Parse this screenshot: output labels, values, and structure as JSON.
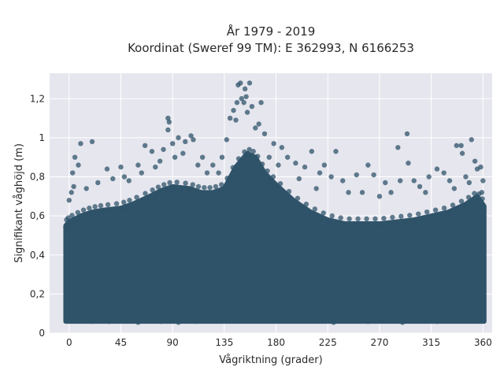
{
  "chart_data": {
    "type": "scatter",
    "title_line1": "År 1979 - 2019",
    "title_line2": "Koordinat (Sweref 99 TM): E 362993, N 6166253",
    "xlabel": "Vågriktning (grader)",
    "ylabel": "Signifikant våghöjd (m)",
    "xlim": [
      -17,
      368
    ],
    "ylim": [
      0,
      1.33
    ],
    "x_ticks": [
      0,
      45,
      90,
      135,
      180,
      225,
      270,
      315,
      360
    ],
    "x_tick_labels": [
      "0",
      "45",
      "90",
      "135",
      "180",
      "225",
      "270",
      "315",
      "360"
    ],
    "y_ticks": [
      0,
      0.2,
      0.4,
      0.6,
      0.8,
      1,
      1.2
    ],
    "y_tick_labels": [
      "0",
      "0,2",
      "0,4",
      "0,6",
      "0,8",
      "1",
      "1,2"
    ],
    "grid": true,
    "marker_color": "#2f5369",
    "plot_background": "#e6e6ee",
    "dense_band": {
      "x_range": [
        -3,
        361
      ],
      "y_min": 0.06,
      "y_max_profile": [
        {
          "x": -3,
          "y": 0.55
        },
        {
          "x": 0,
          "y": 0.57
        },
        {
          "x": 10,
          "y": 0.6
        },
        {
          "x": 20,
          "y": 0.62
        },
        {
          "x": 30,
          "y": 0.63
        },
        {
          "x": 45,
          "y": 0.64
        },
        {
          "x": 55,
          "y": 0.66
        },
        {
          "x": 70,
          "y": 0.7
        },
        {
          "x": 80,
          "y": 0.73
        },
        {
          "x": 90,
          "y": 0.75
        },
        {
          "x": 105,
          "y": 0.74
        },
        {
          "x": 115,
          "y": 0.72
        },
        {
          "x": 125,
          "y": 0.72
        },
        {
          "x": 135,
          "y": 0.74
        },
        {
          "x": 145,
          "y": 0.85
        },
        {
          "x": 155,
          "y": 0.92
        },
        {
          "x": 162,
          "y": 0.9
        },
        {
          "x": 170,
          "y": 0.82
        },
        {
          "x": 180,
          "y": 0.76
        },
        {
          "x": 195,
          "y": 0.68
        },
        {
          "x": 210,
          "y": 0.62
        },
        {
          "x": 225,
          "y": 0.58
        },
        {
          "x": 240,
          "y": 0.56
        },
        {
          "x": 255,
          "y": 0.56
        },
        {
          "x": 270,
          "y": 0.56
        },
        {
          "x": 285,
          "y": 0.57
        },
        {
          "x": 300,
          "y": 0.58
        },
        {
          "x": 315,
          "y": 0.6
        },
        {
          "x": 330,
          "y": 0.62
        },
        {
          "x": 345,
          "y": 0.66
        },
        {
          "x": 355,
          "y": 0.7
        },
        {
          "x": 361,
          "y": 0.65
        }
      ]
    },
    "sample_points": [
      {
        "x": 3,
        "y": 0.82
      },
      {
        "x": 5,
        "y": 0.9
      },
      {
        "x": 8,
        "y": 0.86
      },
      {
        "x": 10,
        "y": 0.97
      },
      {
        "x": 20,
        "y": 0.98
      },
      {
        "x": 33,
        "y": 0.84
      },
      {
        "x": 45,
        "y": 0.85
      },
      {
        "x": 60,
        "y": 0.86
      },
      {
        "x": 66,
        "y": 0.96
      },
      {
        "x": 72,
        "y": 0.93
      },
      {
        "x": 86,
        "y": 1.1
      },
      {
        "x": 87,
        "y": 1.08
      },
      {
        "x": 86,
        "y": 1.04
      },
      {
        "x": 90,
        "y": 0.97
      },
      {
        "x": 95,
        "y": 1.0
      },
      {
        "x": 101,
        "y": 0.98
      },
      {
        "x": 106,
        "y": 1.01
      },
      {
        "x": 108,
        "y": 0.99
      },
      {
        "x": 116,
        "y": 0.9
      },
      {
        "x": 125,
        "y": 0.86
      },
      {
        "x": 133,
        "y": 0.9
      },
      {
        "x": 140,
        "y": 1.1
      },
      {
        "x": 143,
        "y": 1.14
      },
      {
        "x": 145,
        "y": 1.09
      },
      {
        "x": 146,
        "y": 1.18
      },
      {
        "x": 147,
        "y": 1.27
      },
      {
        "x": 149,
        "y": 1.28
      },
      {
        "x": 150,
        "y": 1.2
      },
      {
        "x": 152,
        "y": 1.18
      },
      {
        "x": 153,
        "y": 1.25
      },
      {
        "x": 154,
        "y": 1.21
      },
      {
        "x": 155,
        "y": 1.13
      },
      {
        "x": 157,
        "y": 1.28
      },
      {
        "x": 159,
        "y": 1.16
      },
      {
        "x": 162,
        "y": 1.05
      },
      {
        "x": 165,
        "y": 1.07
      },
      {
        "x": 167,
        "y": 1.18
      },
      {
        "x": 170,
        "y": 1.02
      },
      {
        "x": 178,
        "y": 0.97
      },
      {
        "x": 185,
        "y": 0.95
      },
      {
        "x": 190,
        "y": 0.9
      },
      {
        "x": 197,
        "y": 0.87
      },
      {
        "x": 205,
        "y": 0.85
      },
      {
        "x": 211,
        "y": 0.93
      },
      {
        "x": 218,
        "y": 0.82
      },
      {
        "x": 222,
        "y": 0.86
      },
      {
        "x": 228,
        "y": 0.8
      },
      {
        "x": 232,
        "y": 0.93
      },
      {
        "x": 238,
        "y": 0.78
      },
      {
        "x": 250,
        "y": 0.81
      },
      {
        "x": 255,
        "y": 0.72
      },
      {
        "x": 260,
        "y": 0.86
      },
      {
        "x": 265,
        "y": 0.81
      },
      {
        "x": 275,
        "y": 0.77
      },
      {
        "x": 286,
        "y": 0.95
      },
      {
        "x": 288,
        "y": 0.78
      },
      {
        "x": 294,
        "y": 1.02
      },
      {
        "x": 295,
        "y": 0.87
      },
      {
        "x": 300,
        "y": 0.78
      },
      {
        "x": 305,
        "y": 0.75
      },
      {
        "x": 313,
        "y": 0.8
      },
      {
        "x": 320,
        "y": 0.84
      },
      {
        "x": 326,
        "y": 0.82
      },
      {
        "x": 331,
        "y": 0.78
      },
      {
        "x": 337,
        "y": 0.96
      },
      {
        "x": 341,
        "y": 0.96
      },
      {
        "x": 342,
        "y": 0.92
      },
      {
        "x": 345,
        "y": 0.8
      },
      {
        "x": 350,
        "y": 0.99
      },
      {
        "x": 353,
        "y": 0.88
      },
      {
        "x": 355,
        "y": 0.84
      },
      {
        "x": 358,
        "y": 0.85
      },
      {
        "x": 0,
        "y": 0.68
      },
      {
        "x": 2,
        "y": 0.72
      },
      {
        "x": 4,
        "y": 0.75
      },
      {
        "x": 15,
        "y": 0.74
      },
      {
        "x": 25,
        "y": 0.77
      },
      {
        "x": 38,
        "y": 0.79
      },
      {
        "x": 48,
        "y": 0.8
      },
      {
        "x": 52,
        "y": 0.78
      },
      {
        "x": 63,
        "y": 0.82
      },
      {
        "x": 75,
        "y": 0.85
      },
      {
        "x": 79,
        "y": 0.88
      },
      {
        "x": 82,
        "y": 0.94
      },
      {
        "x": 92,
        "y": 0.9
      },
      {
        "x": 99,
        "y": 0.92
      },
      {
        "x": 112,
        "y": 0.86
      },
      {
        "x": 120,
        "y": 0.82
      },
      {
        "x": 130,
        "y": 0.82
      },
      {
        "x": 137,
        "y": 0.99
      },
      {
        "x": 174,
        "y": 0.9
      },
      {
        "x": 182,
        "y": 0.86
      },
      {
        "x": 200,
        "y": 0.79
      },
      {
        "x": 215,
        "y": 0.74
      },
      {
        "x": 243,
        "y": 0.72
      },
      {
        "x": 270,
        "y": 0.7
      },
      {
        "x": 280,
        "y": 0.72
      },
      {
        "x": 310,
        "y": 0.72
      },
      {
        "x": 335,
        "y": 0.74
      },
      {
        "x": 348,
        "y": 0.77
      },
      {
        "x": 360,
        "y": 0.78
      },
      {
        "x": 359,
        "y": 0.72
      },
      {
        "x": 20,
        "y": 0.06
      },
      {
        "x": 35,
        "y": 0.06
      },
      {
        "x": 60,
        "y": 0.055
      },
      {
        "x": 80,
        "y": 0.06
      },
      {
        "x": 95,
        "y": 0.055
      },
      {
        "x": 110,
        "y": 0.06
      },
      {
        "x": 230,
        "y": 0.055
      },
      {
        "x": 260,
        "y": 0.06
      },
      {
        "x": 290,
        "y": 0.055
      },
      {
        "x": 320,
        "y": 0.06
      }
    ]
  }
}
